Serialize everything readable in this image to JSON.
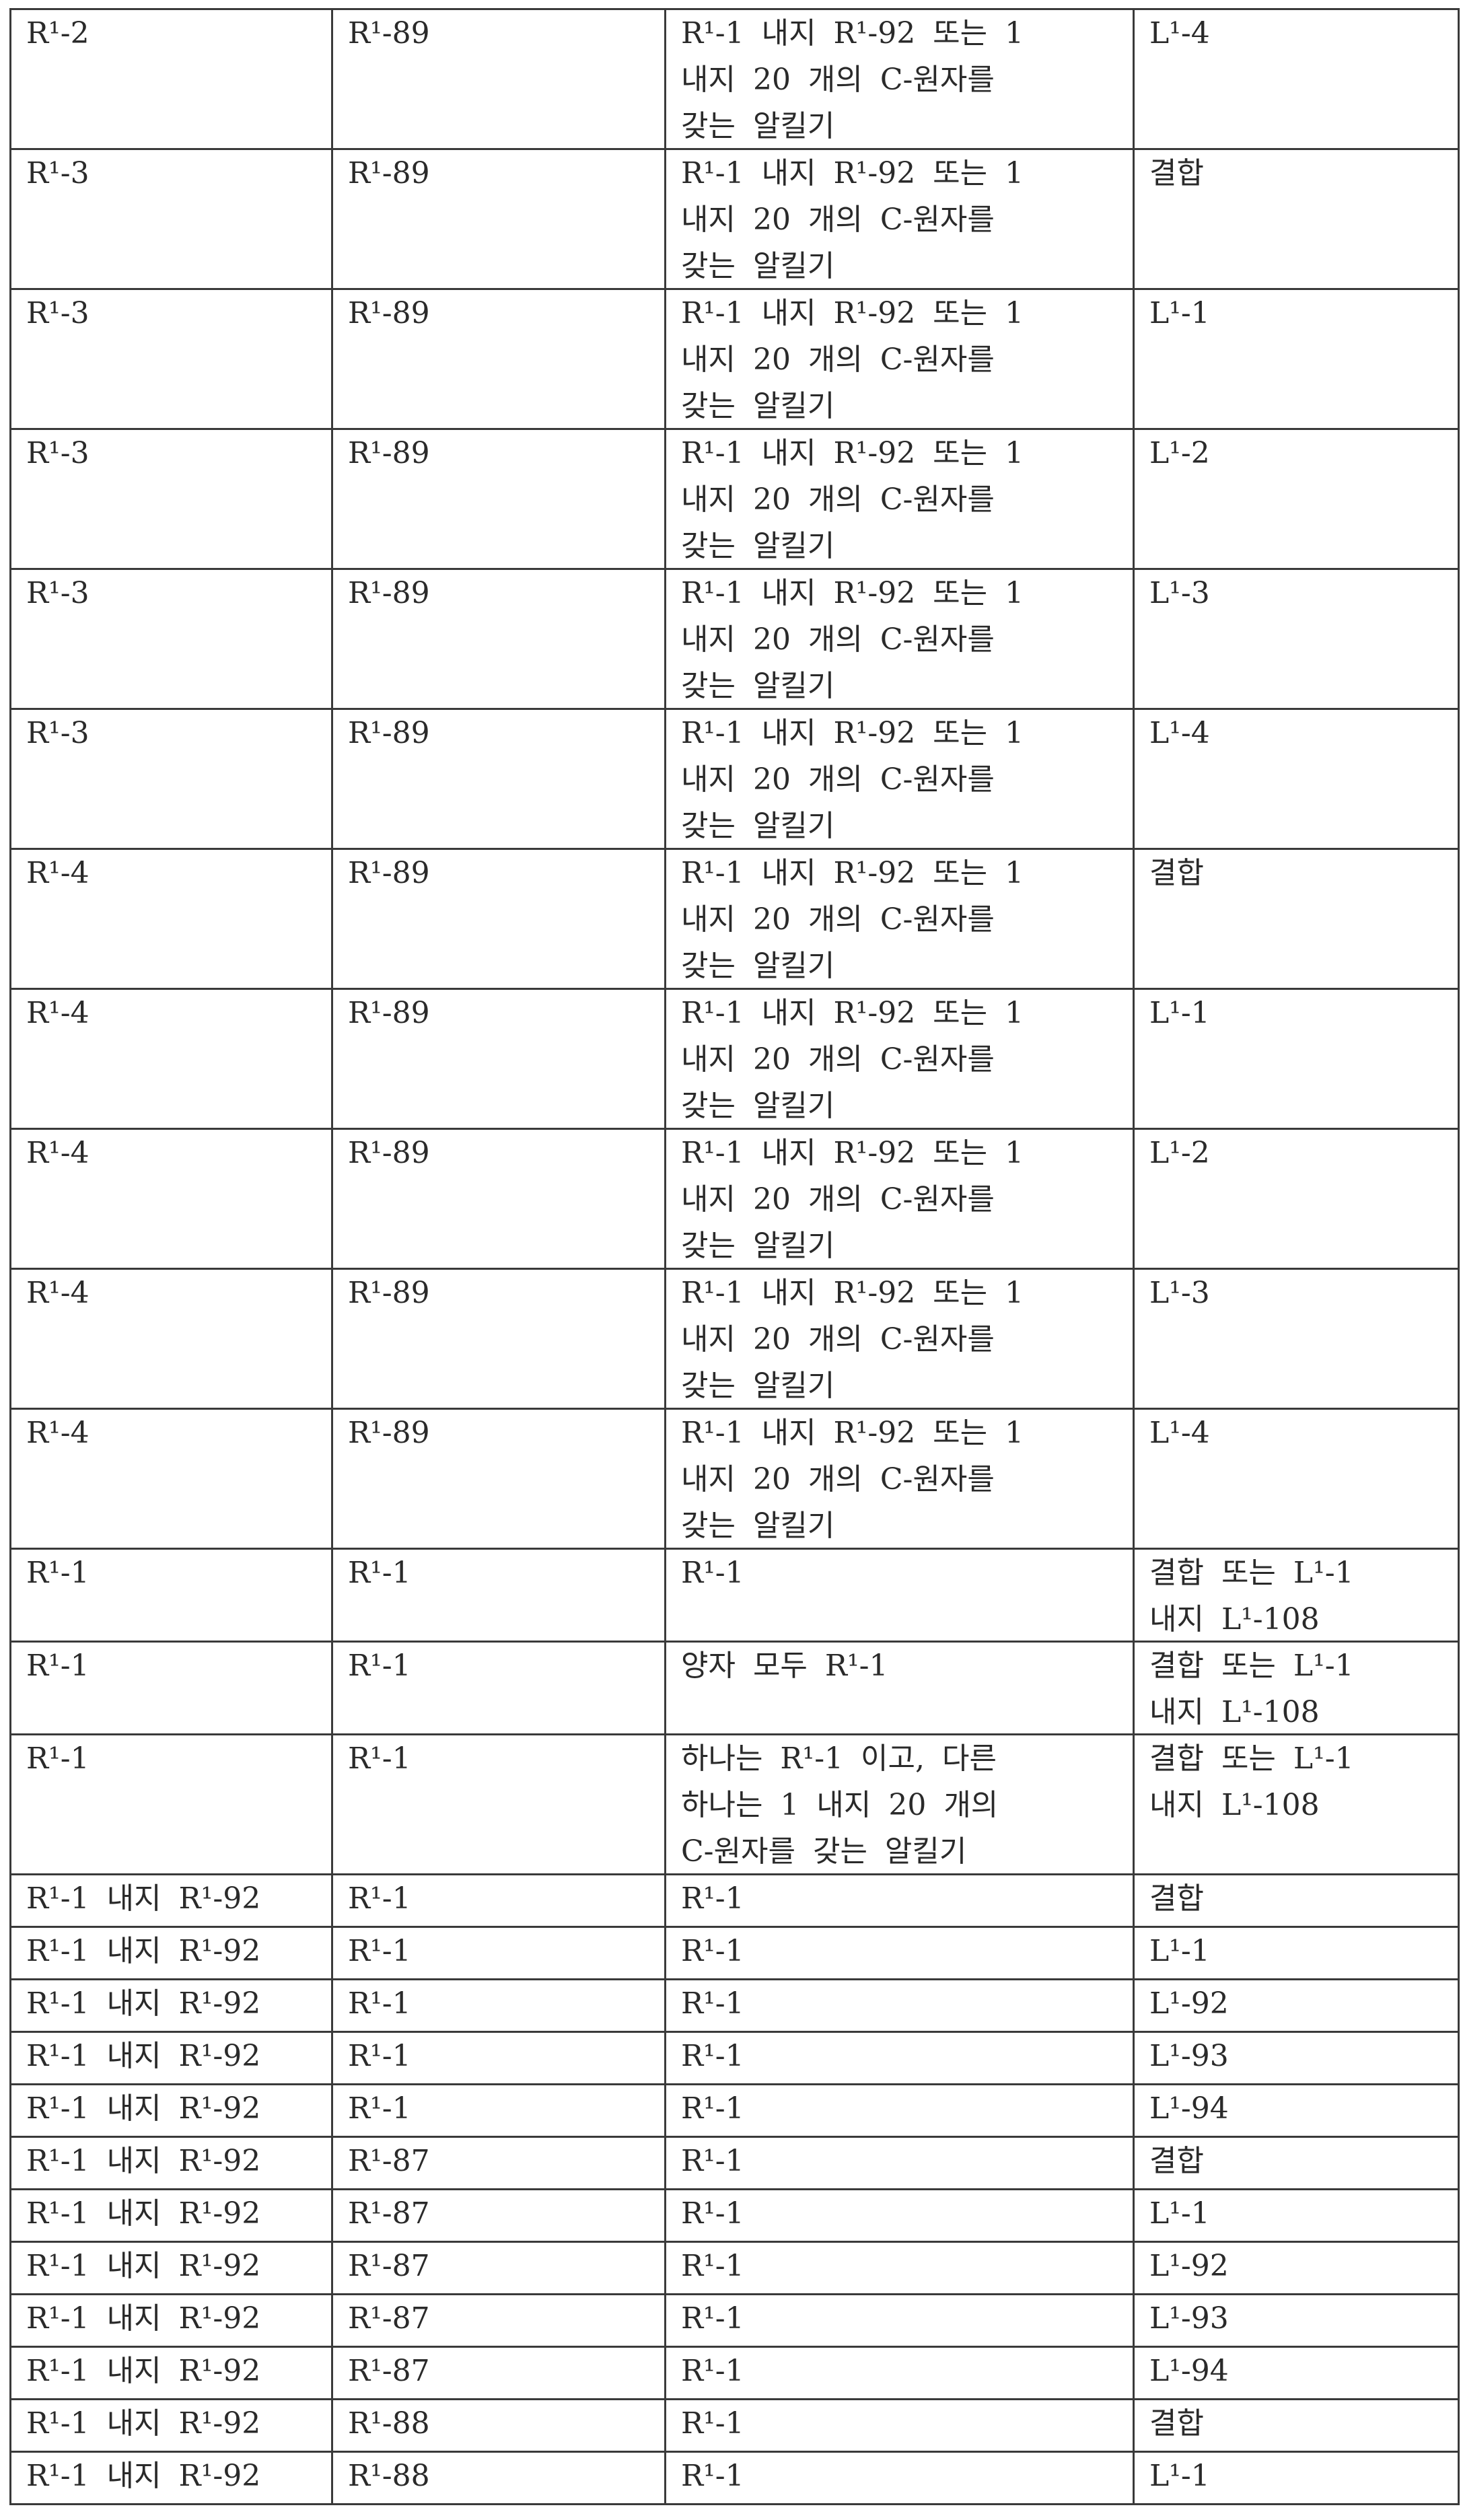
{
  "table": {
    "rows": [
      [
        "R¹-2",
        "R¹-89",
        "R¹-1 내지 R¹-92 또는 1\n내지 20 개의 C-원자를\n갖는 알킬기",
        "L¹-4"
      ],
      [
        "R¹-3",
        "R¹-89",
        "R¹-1 내지 R¹-92 또는 1\n내지 20 개의 C-원자를\n갖는 알킬기",
        "결합"
      ],
      [
        "R¹-3",
        "R¹-89",
        "R¹-1 내지 R¹-92 또는 1\n내지 20 개의 C-원자를\n갖는 알킬기",
        "L¹-1"
      ],
      [
        "R¹-3",
        "R¹-89",
        "R¹-1 내지 R¹-92 또는 1\n내지 20 개의 C-원자를\n갖는 알킬기",
        "L¹-2"
      ],
      [
        "R¹-3",
        "R¹-89",
        "R¹-1 내지 R¹-92 또는 1\n내지 20 개의 C-원자를\n갖는 알킬기",
        "L¹-3"
      ],
      [
        "R¹-3",
        "R¹-89",
        "R¹-1 내지 R¹-92 또는 1\n내지 20 개의 C-원자를\n갖는 알킬기",
        "L¹-4"
      ],
      [
        "R¹-4",
        "R¹-89",
        "R¹-1 내지 R¹-92 또는 1\n내지 20 개의 C-원자를\n갖는 알킬기",
        "결합"
      ],
      [
        "R¹-4",
        "R¹-89",
        "R¹-1 내지 R¹-92 또는 1\n내지 20 개의 C-원자를\n갖는 알킬기",
        "L¹-1"
      ],
      [
        "R¹-4",
        "R¹-89",
        "R¹-1 내지 R¹-92 또는 1\n내지 20 개의 C-원자를\n갖는 알킬기",
        "L¹-2"
      ],
      [
        "R¹-4",
        "R¹-89",
        "R¹-1 내지 R¹-92 또는 1\n내지 20 개의 C-원자를\n갖는 알킬기",
        "L¹-3"
      ],
      [
        "R¹-4",
        "R¹-89",
        "R¹-1 내지 R¹-92 또는 1\n내지 20 개의 C-원자를\n갖는 알킬기",
        "L¹-4"
      ],
      [
        "R¹-1",
        "R¹-1",
        "R¹-1",
        "결합 또는 L¹-1\n내지 L¹-108"
      ],
      [
        "R¹-1",
        "R¹-1",
        "양자 모두 R¹-1",
        "결합 또는 L¹-1\n내지 L¹-108"
      ],
      [
        "R¹-1",
        "R¹-1",
        "하나는 R¹-1 이고, 다른\n하나는 1 내지 20 개의\nC-원자를 갖는 알킬기",
        "결합 또는 L¹-1\n내지 L¹-108"
      ],
      [
        "R¹-1 내지 R¹-92",
        "R¹-1",
        "R¹-1",
        "결합"
      ],
      [
        "R¹-1 내지 R¹-92",
        "R¹-1",
        "R¹-1",
        "L¹-1"
      ],
      [
        "R¹-1 내지 R¹-92",
        "R¹-1",
        "R¹-1",
        "L¹-92"
      ],
      [
        "R¹-1 내지 R¹-92",
        "R¹-1",
        "R¹-1",
        "L¹-93"
      ],
      [
        "R¹-1 내지 R¹-92",
        "R¹-1",
        "R¹-1",
        "L¹-94"
      ],
      [
        "R¹-1 내지 R¹-92",
        "R¹-87",
        "R¹-1",
        "결합"
      ],
      [
        "R¹-1 내지 R¹-92",
        "R¹-87",
        "R¹-1",
        "L¹-1"
      ],
      [
        "R¹-1 내지 R¹-92",
        "R¹-87",
        "R¹-1",
        "L¹-92"
      ],
      [
        "R¹-1 내지 R¹-92",
        "R¹-87",
        "R¹-1",
        "L¹-93"
      ],
      [
        "R¹-1 내지 R¹-92",
        "R¹-87",
        "R¹-1",
        "L¹-94"
      ],
      [
        "R¹-1 내지 R¹-92",
        "R¹-88",
        "R¹-1",
        "결합"
      ],
      [
        "R¹-1 내지 R¹-92",
        "R¹-88",
        "R¹-1",
        "L¹-1"
      ]
    ]
  }
}
